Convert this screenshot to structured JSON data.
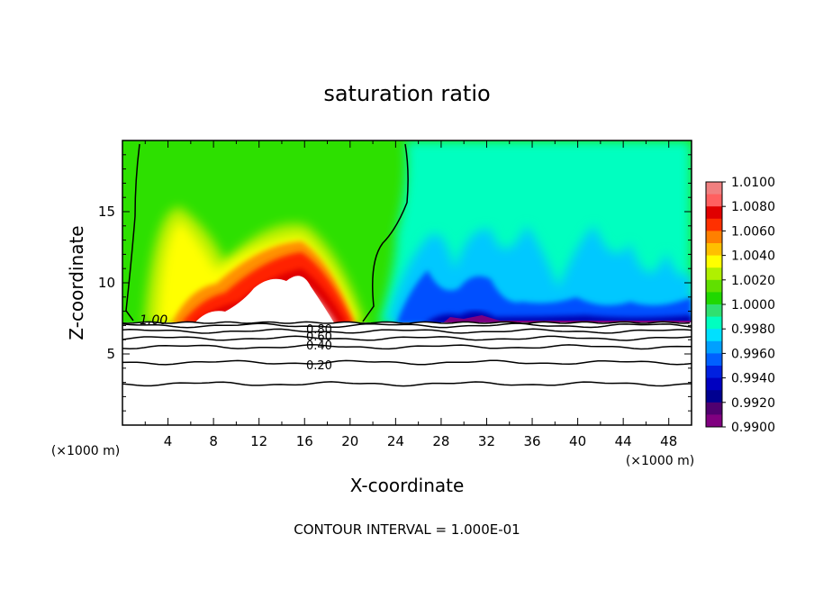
{
  "chart_data": {
    "type": "contour",
    "title": "saturation ratio",
    "xlabel": "X-coordinate",
    "ylabel": "Z-coordinate",
    "x_unit_left": "(×1000 m)",
    "x_unit_right": "(×1000 m)",
    "footer": "CONTOUR INTERVAL = 1.000E-01",
    "xlim": [
      0,
      50
    ],
    "ylim": [
      0,
      20
    ],
    "x_ticks": [
      4,
      8,
      12,
      16,
      20,
      24,
      28,
      32,
      36,
      40,
      44,
      48
    ],
    "y_ticks": [
      5,
      10,
      15
    ],
    "colorbar": {
      "labels": [
        "1.0100",
        "1.0080",
        "1.0060",
        "1.0040",
        "1.0020",
        "1.0000",
        "0.9980",
        "0.9960",
        "0.9940",
        "0.9920",
        "0.9900"
      ],
      "colors": [
        "#f08080",
        "#ff6060",
        "#e00000",
        "#ff3000",
        "#ff8000",
        "#ffc000",
        "#ffff00",
        "#b0f000",
        "#60e000",
        "#20d800",
        "#30e070",
        "#00ffc0",
        "#00e0ff",
        "#00a0ff",
        "#0060ff",
        "#0020e0",
        "#0000c0",
        "#000090",
        "#500070",
        "#800080"
      ]
    },
    "contour_labels": [
      "1.00",
      "0.80",
      "0.60",
      "0.40",
      "0.20"
    ],
    "contour_lines": [
      {
        "value": 0.2,
        "z": 4.4
      },
      {
        "value": null,
        "z": 2.9
      },
      {
        "value": 0.4,
        "z": 5.5
      },
      {
        "value": 0.6,
        "z": 6.1
      },
      {
        "value": 0.8,
        "z": 6.6
      },
      {
        "value": null,
        "z": 7.0
      }
    ],
    "cloud_base_z": 7.2
  }
}
